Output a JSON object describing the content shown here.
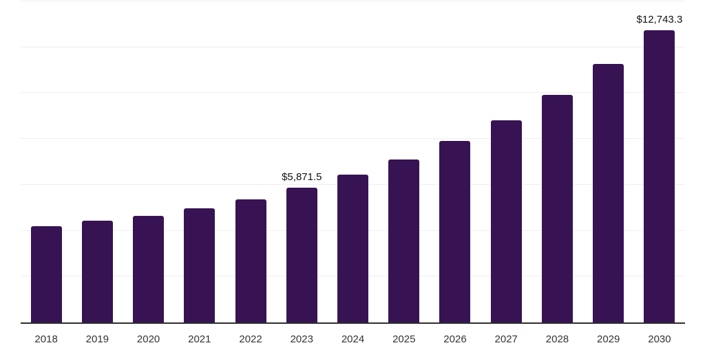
{
  "chart_data": {
    "type": "bar",
    "title": "",
    "xlabel": "",
    "ylabel": "",
    "categories": [
      "2018",
      "2019",
      "2020",
      "2021",
      "2022",
      "2023",
      "2024",
      "2025",
      "2026",
      "2027",
      "2028",
      "2029",
      "2030"
    ],
    "values": [
      4190,
      4425,
      4640,
      4990,
      5380,
      5871.5,
      6450,
      7100,
      7900,
      8825,
      9925,
      11260,
      12743.3
    ],
    "data_labels": [
      "",
      "",
      "",
      "",
      "",
      "$5,871.5",
      "",
      "",
      "",
      "",
      "",
      "",
      "$12,743.3"
    ],
    "ylim": [
      0,
      14000
    ],
    "gridline_step": 2000,
    "grid_on": true,
    "legend": "none",
    "colors": {
      "bar": "#371353",
      "gridline": "#efefef",
      "axis_line": "#2e2e2e",
      "tick_label": "#333333",
      "data_label": "#111111",
      "background": "#ffffff"
    }
  }
}
